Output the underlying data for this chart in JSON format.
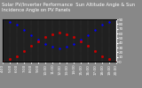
{
  "title": "Solar PV/Inverter Performance  Sun Altitude Angle & Sun Incidence Angle on PV Panels",
  "x_hours": [
    4,
    5,
    6,
    7,
    8,
    9,
    10,
    11,
    12,
    13,
    14,
    15,
    16,
    17,
    18,
    19,
    20
  ],
  "sun_altitude_inv": [
    90,
    85,
    78,
    68,
    57,
    46,
    37,
    31,
    29,
    31,
    37,
    46,
    57,
    68,
    78,
    85,
    90
  ],
  "sun_incidence": [
    0,
    5,
    12,
    22,
    33,
    44,
    53,
    59,
    61,
    59,
    53,
    44,
    33,
    22,
    12,
    5,
    0
  ],
  "altitude_color": "#0000ff",
  "incidence_color": "#cc0000",
  "bg_color": "#888888",
  "plot_bg": "#202020",
  "grid_color": "#555555",
  "ylim": [
    0,
    90
  ],
  "right_yticks": [
    0,
    10,
    20,
    30,
    40,
    50,
    60,
    70,
    80,
    90
  ],
  "title_fontsize": 3.8,
  "tick_fontsize": 3.0
}
